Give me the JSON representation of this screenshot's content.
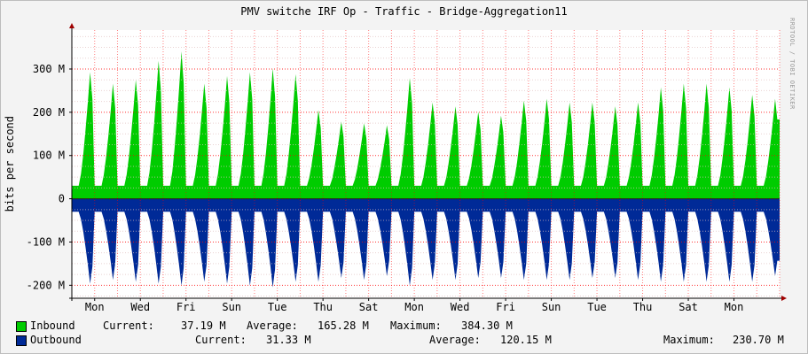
{
  "title": "PMV switche IRF Op - Traffic - Bridge-Aggregation11",
  "watermark": "RRDTOOL / TOBI OETIKER",
  "colors": {
    "inbound": "#00cc00",
    "outbound": "#002a97",
    "grid": "#ff0000",
    "background": "#ffffff"
  },
  "chart_data": {
    "type": "area",
    "ylabel": "bits per second",
    "ylim": [
      -230000000,
      390000000
    ],
    "yticks": [
      {
        "value": 300000000,
        "label": "300 M"
      },
      {
        "value": 200000000,
        "label": "200 M"
      },
      {
        "value": 100000000,
        "label": "100 M"
      },
      {
        "value": 0,
        "label": "0"
      },
      {
        "value": -100000000,
        "label": "-100 M"
      },
      {
        "value": -200000000,
        "label": "-200 M"
      }
    ],
    "xticks": [
      "Mon",
      "Wed",
      "Fri",
      "Sun",
      "Tue",
      "Thu",
      "Sat",
      "Mon",
      "Wed",
      "Fri",
      "Sun",
      "Tue",
      "Thu",
      "Sat",
      "Mon"
    ],
    "x_days": 31,
    "grid": true,
    "series": [
      {
        "name": "Inbound",
        "daily_peak": [
          330,
          300,
          310,
          360,
          385,
          300,
          320,
          330,
          340,
          325,
          230,
          200,
          195,
          190,
          315,
          250,
          240,
          225,
          215,
          255,
          260,
          250,
          250,
          240,
          250,
          290,
          300,
          300,
          290,
          270,
          260
        ],
        "base": 30
      },
      {
        "name": "Outbound",
        "daily_peak": [
          -220,
          -210,
          -215,
          -220,
          -225,
          -215,
          -220,
          -225,
          -230,
          -215,
          -215,
          -205,
          -210,
          -200,
          -225,
          -210,
          -210,
          -205,
          -205,
          -210,
          -210,
          -210,
          -205,
          -205,
          -210,
          -215,
          -215,
          -215,
          -215,
          -215,
          -200
        ],
        "base": -30
      }
    ]
  },
  "legend": {
    "inbound": {
      "name": "Inbound",
      "current_label": "Current:",
      "current": "37.19 M",
      "average_label": "Average:",
      "average": "165.28 M",
      "maximum_label": "Maximum:",
      "maximum": "384.30 M"
    },
    "outbound": {
      "name": "Outbound",
      "current_label": "Current:",
      "current": "31.33 M",
      "average_label": "Average:",
      "average": "120.15 M",
      "maximum_label": "Maximum:",
      "maximum": "230.70 M"
    }
  }
}
